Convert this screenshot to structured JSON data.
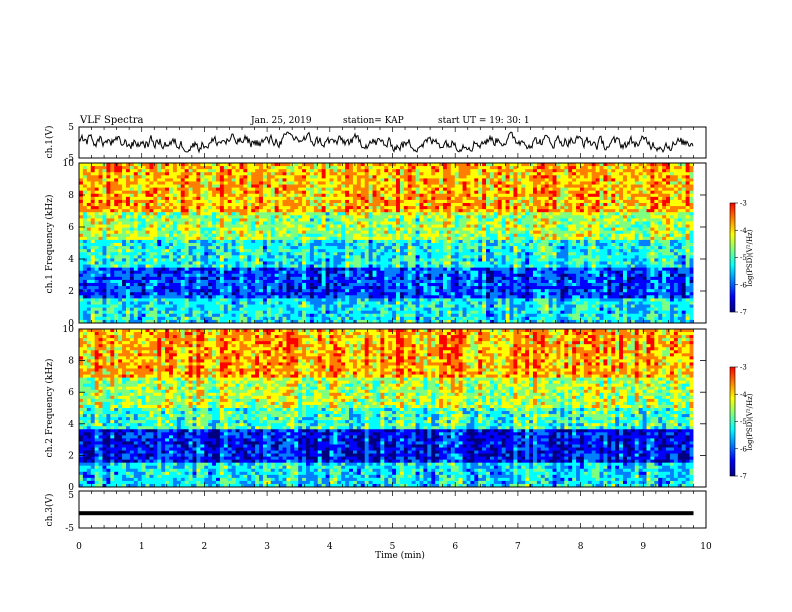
{
  "header": {
    "title": "VLF Spectra",
    "date": "Jan. 25, 2019",
    "station": "station= KAP",
    "start_ut": "start  UT  =   19: 30: 1"
  },
  "colorbar_label": "log(PSD)(V²/Hz)",
  "colorbar_ticks": [
    "-3",
    "-4",
    "-5",
    "-6",
    "-7"
  ],
  "colormap": [
    "#00007f",
    "#0000ff",
    "#007fff",
    "#00ffff",
    "#7fff7f",
    "#ffff00",
    "#ff7f00",
    "#ff0000",
    "#ffffff"
  ],
  "chart_data": [
    {
      "type": "line",
      "panel": "ch.1 waveform",
      "ylabel": "ch.1(V)",
      "ylim": [
        -5,
        5
      ],
      "yticks": [
        "5",
        "-5"
      ],
      "xlim": [
        0,
        10
      ],
      "note": "dense noisy waveform roughly between -3 and 3 V"
    },
    {
      "type": "heatmap",
      "panel": "ch.1 spectrogram",
      "ylabel": "ch.1 Frequency (kHz)",
      "ylim": [
        0,
        10
      ],
      "yticks": [
        "0",
        "2",
        "4",
        "6",
        "8",
        "10"
      ],
      "xlim": [
        0,
        10
      ],
      "zlim": [
        -7,
        -3
      ],
      "bands_kHz": [
        {
          "from": 0,
          "to": 1.5,
          "level": -5.3
        },
        {
          "from": 1.5,
          "to": 3.5,
          "level": -6.0
        },
        {
          "from": 3.5,
          "to": 5.2,
          "level": -5.2
        },
        {
          "from": 5.2,
          "to": 7.0,
          "level": -4.6
        },
        {
          "from": 7.0,
          "to": 10,
          "level": -4.0
        }
      ]
    },
    {
      "type": "heatmap",
      "panel": "ch.2 spectrogram",
      "ylabel": "ch.2 Frequency (kHz)",
      "ylim": [
        0,
        10
      ],
      "yticks": [
        "0",
        "2",
        "4",
        "6",
        "8",
        "10"
      ],
      "xlim": [
        0,
        10
      ],
      "zlim": [
        -7,
        -3
      ],
      "bands_kHz": [
        {
          "from": 0,
          "to": 1.5,
          "level": -5.3
        },
        {
          "from": 1.5,
          "to": 3.6,
          "level": -6.2
        },
        {
          "from": 3.6,
          "to": 5.0,
          "level": -5.0
        },
        {
          "from": 5.0,
          "to": 7.0,
          "level": -4.5
        },
        {
          "from": 7.0,
          "to": 10,
          "level": -3.9
        }
      ]
    },
    {
      "type": "line",
      "panel": "ch.3 waveform",
      "ylabel": "ch.3(V)",
      "ylim": [
        -5,
        5
      ],
      "yticks": [
        "5",
        "-5"
      ],
      "xlim": [
        0,
        10
      ],
      "xlabel": "Time  (min)",
      "xticks": [
        "0",
        "1",
        "2",
        "3",
        "4",
        "5",
        "6",
        "7",
        "8",
        "9",
        "10"
      ],
      "values_constant": -1,
      "data_end_x": 9.8
    }
  ]
}
